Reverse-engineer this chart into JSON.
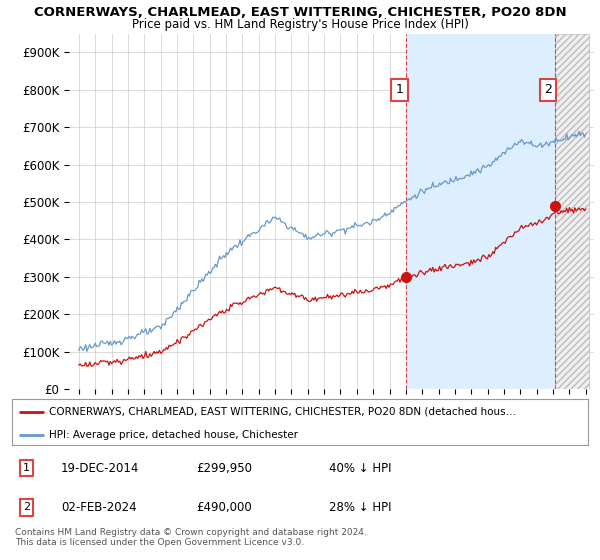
{
  "title": "CORNERWAYS, CHARLMEAD, EAST WITTERING, CHICHESTER, PO20 8DN",
  "subtitle": "Price paid vs. HM Land Registry's House Price Index (HPI)",
  "ylim": [
    0,
    950000
  ],
  "yticks": [
    0,
    100000,
    200000,
    300000,
    400000,
    500000,
    600000,
    700000,
    800000,
    900000
  ],
  "ytick_labels": [
    "£0",
    "£100K",
    "£200K",
    "£300K",
    "£400K",
    "£500K",
    "£600K",
    "£700K",
    "£800K",
    "£900K"
  ],
  "year_start": 1995,
  "year_end": 2026,
  "hpi_color": "#6699cc",
  "hpi_fill_color": "#ddeeff",
  "price_color": "#cc1111",
  "vline_color": "#dd4444",
  "sale1_year": 2015.0,
  "sale1_price": 299950,
  "sale2_year": 2024.09,
  "sale2_price": 490000,
  "legend_line1": "CORNERWAYS, CHARLMEAD, EAST WITTERING, CHICHESTER, PO20 8DN (detached hous…",
  "legend_line2": "HPI: Average price, detached house, Chichester",
  "table_row1": [
    "1",
    "19-DEC-2014",
    "£299,950",
    "40% ↓ HPI"
  ],
  "table_row2": [
    "2",
    "02-FEB-2024",
    "£490,000",
    "28% ↓ HPI"
  ],
  "footnote": "Contains HM Land Registry data © Crown copyright and database right 2024.\nThis data is licensed under the Open Government Licence v3.0.",
  "bg_color": "#ffffff",
  "grid_color": "#cccccc"
}
